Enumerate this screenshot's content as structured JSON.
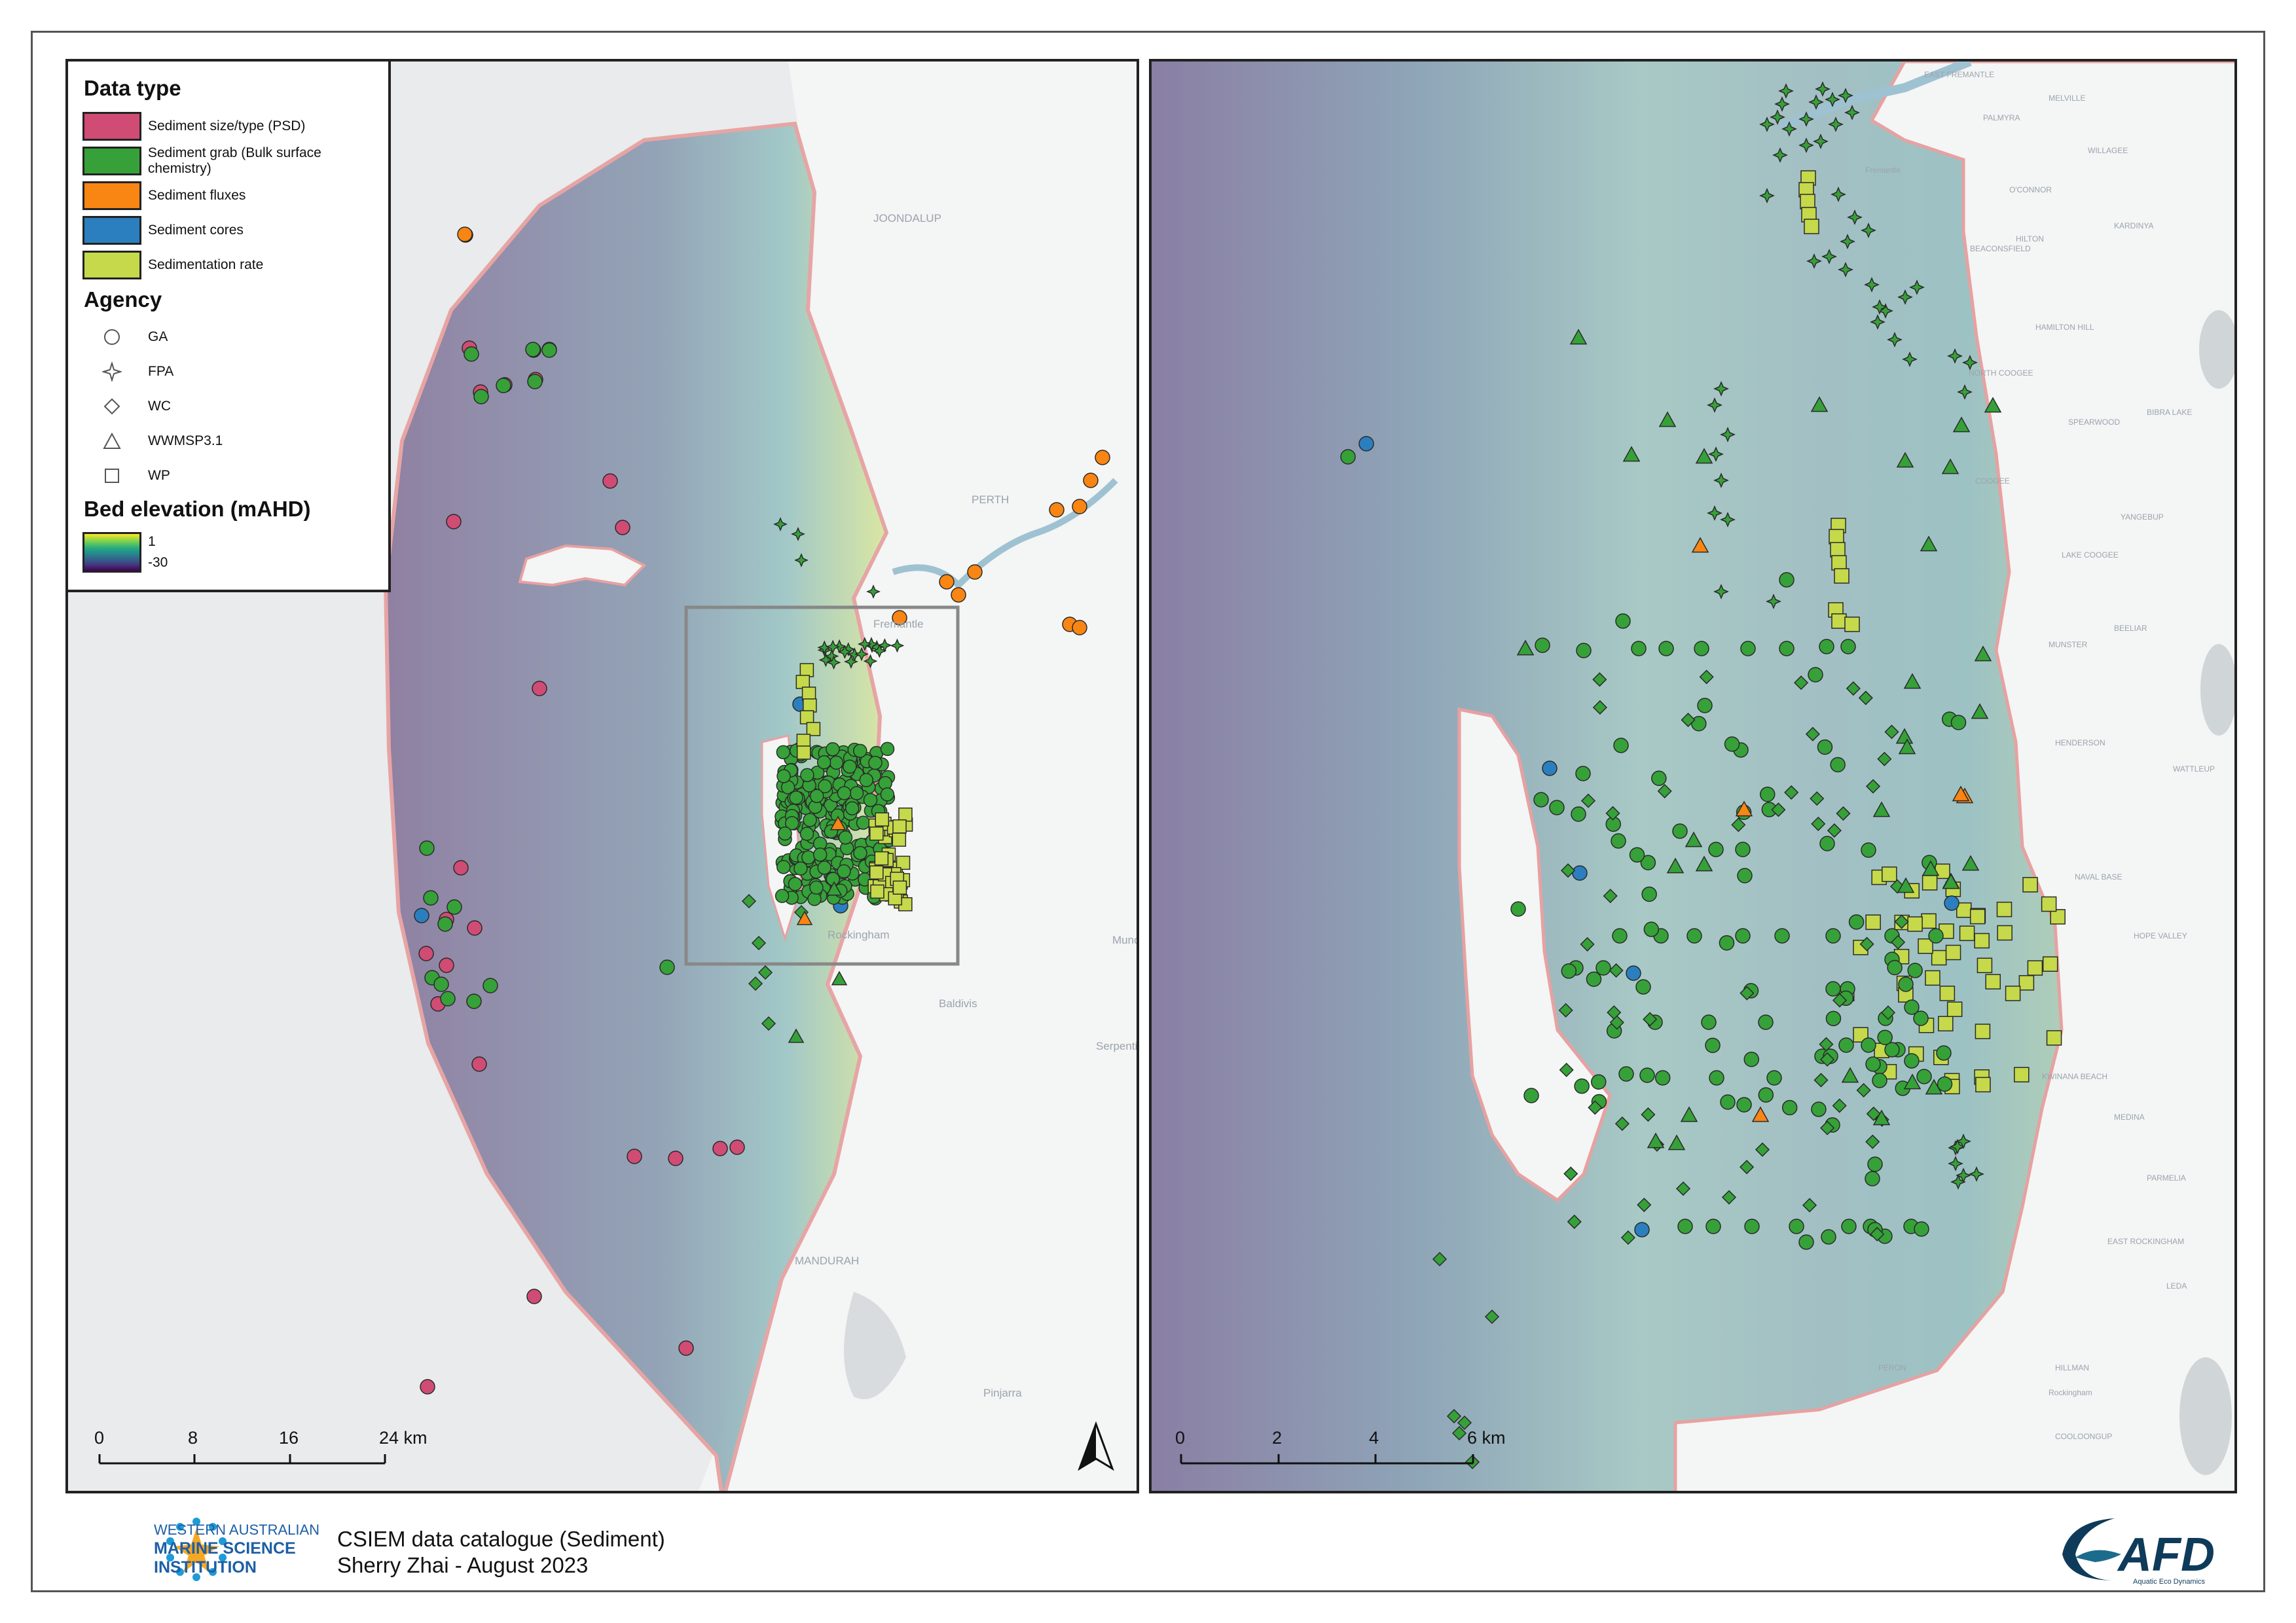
{
  "legend": {
    "data_type_title": "Data type",
    "data_types": [
      {
        "label": "Sediment size/type (PSD)",
        "color": "#d04c74"
      },
      {
        "label": "Sediment grab (Bulk surface chemistry)",
        "color": "#36a138"
      },
      {
        "label": "Sediment fluxes",
        "color": "#f98513"
      },
      {
        "label": "Sediment cores",
        "color": "#2b7fbf"
      },
      {
        "label": "Sedimentation rate",
        "color": "#c5d94a"
      }
    ],
    "agency_title": "Agency",
    "agencies": [
      {
        "label": "GA",
        "symbol": "circle"
      },
      {
        "label": "FPA",
        "symbol": "star"
      },
      {
        "label": "WC",
        "symbol": "diamond"
      },
      {
        "label": "WWMSP3.1",
        "symbol": "triangle"
      },
      {
        "label": "WP",
        "symbol": "square"
      }
    ],
    "elevation_title": "Bed elevation (mAHD)",
    "elevation_max": "1",
    "elevation_min": "-30"
  },
  "left_map": {
    "place_labels": [
      "JOONDALUP",
      "PERTH",
      "Fremantle",
      "Rockingham",
      "MANDURAH",
      "Baldivis",
      "Serpentine",
      "Mundijong",
      "Pinjarra"
    ],
    "scale_labels": [
      "0",
      "8",
      "16",
      "24 km"
    ]
  },
  "right_map": {
    "place_labels": [
      "EAST FREMANTLE",
      "Fremantle",
      "PALMYRA",
      "MELVILLE",
      "WILLAGEE",
      "O'CONNOR",
      "KARDINYA",
      "HILTON",
      "BEACONSFIELD",
      "HAMILTON HILL",
      "SPEARWOOD",
      "NORTH COOGEE",
      "COOGEE",
      "LAKE COOGEE",
      "MUNSTER",
      "BEELIAR",
      "HENDERSON",
      "WATTLEUP",
      "NAVAL BASE",
      "HOPE VALLEY",
      "KWINANA BEACH",
      "MEDINA",
      "PARMELIA",
      "EAST ROCKINGHAM",
      "LEDA",
      "HILLMAN",
      "PERON",
      "Rockingham",
      "COOLOONGUP",
      "BIBRA LAKE",
      "YANGEBUP"
    ],
    "scale_labels": [
      "0",
      "2",
      "4",
      "6 km"
    ]
  },
  "footer": {
    "title": "CSIEM data catalogue (Sediment)",
    "author": "Sherry Zhai - August 2023",
    "org_line1": "WESTERN AUSTRALIAN",
    "org_line2": "MARINE SCIENCE",
    "org_line3": "INSTITUTION",
    "afd_text": "AFD",
    "afd_sub": "Aquatic Eco Dynamics"
  },
  "colors": {
    "psd": "#d04c74",
    "grab": "#36a138",
    "flux": "#f98513",
    "core": "#2b7fbf",
    "rate": "#c5d94a"
  }
}
